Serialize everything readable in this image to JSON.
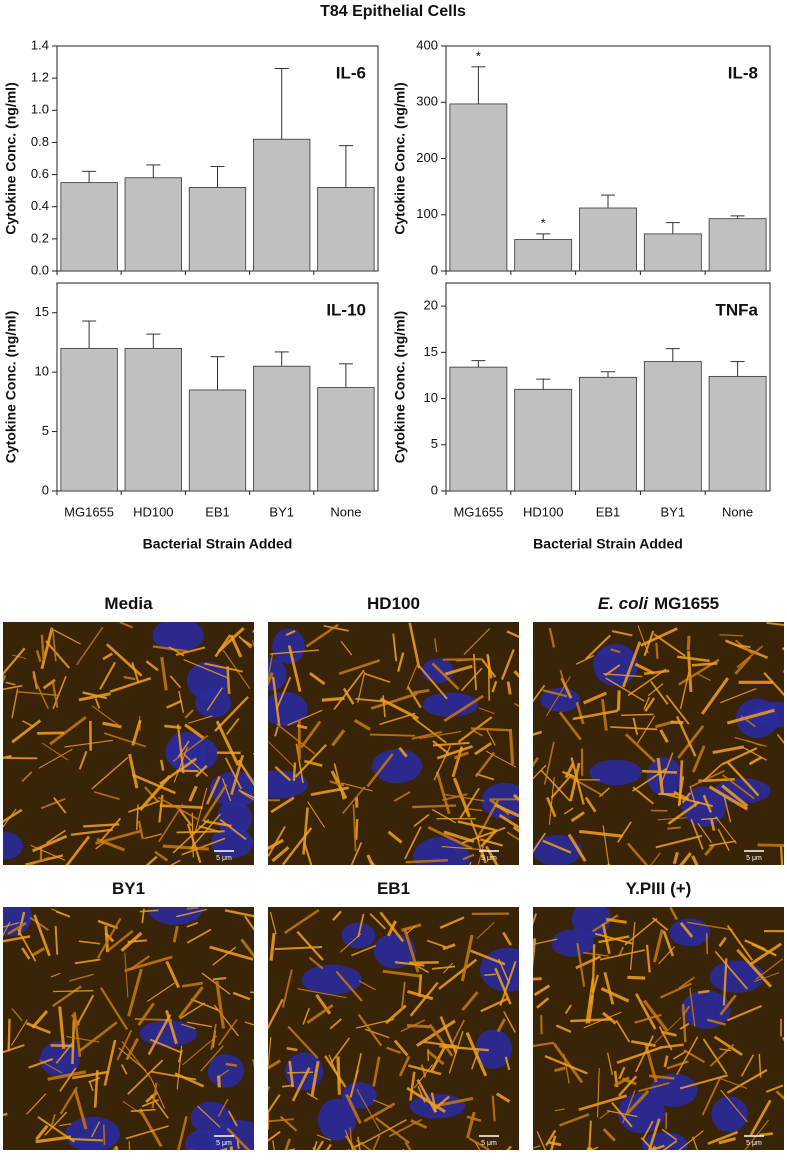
{
  "title": "T84 Epithelial Cells",
  "chart_data": [
    {
      "type": "bar",
      "title": "IL-6",
      "y_label": "Cytokine Conc. (ng/ml)",
      "categories": [
        null,
        null,
        null,
        null,
        null
      ],
      "values": [
        0.55,
        0.58,
        0.52,
        0.82,
        0.52
      ],
      "errors": [
        0.07,
        0.08,
        0.13,
        0.44,
        0.26
      ],
      "color": "#c0c0c0",
      "ylim": [
        0,
        1.4
      ],
      "yticks": [
        {
          "value": 0,
          "label": "0.0"
        },
        0.2,
        0.4,
        0.6,
        0.8,
        {
          "value": 1,
          "label": "1.0"
        },
        1.2,
        1.4
      ]
    },
    {
      "type": "bar",
      "title": "IL-8",
      "y_label": "Cytokine Conc. (ng/ml)",
      "categories": [
        null,
        null,
        null,
        null,
        null
      ],
      "values": [
        297,
        56,
        112,
        66,
        93
      ],
      "errors": [
        66,
        10,
        23,
        20,
        5
      ],
      "annotations": [
        "*",
        "*",
        null,
        null,
        null
      ],
      "color": "#c0c0c0",
      "ylim": [
        0,
        400
      ],
      "yticks": [
        0,
        100,
        200,
        300,
        400
      ]
    },
    {
      "type": "bar",
      "title": "IL-10",
      "y_label": "Cytokine Conc. (ng/ml)",
      "x_label": "Bacterial Strain Added",
      "categories": [
        "MG1655",
        "HD100",
        "EB1",
        "BY1",
        "None"
      ],
      "values": [
        12.0,
        12.0,
        8.5,
        10.5,
        8.7
      ],
      "errors": [
        2.3,
        1.2,
        2.8,
        1.2,
        2.0
      ],
      "color": "#c0c0c0",
      "ylim": [
        0,
        17.5
      ],
      "yticks": [
        0,
        5,
        10,
        15
      ]
    },
    {
      "type": "bar",
      "title": "TNFa",
      "y_label": "Cytokine Conc. (ng/ml)",
      "x_label": "Bacterial Strain Added",
      "categories": [
        "MG1655",
        "HD100",
        "EB1",
        "BY1",
        "None"
      ],
      "values": [
        13.4,
        11.0,
        12.3,
        14.0,
        12.4
      ],
      "errors": [
        0.7,
        1.1,
        0.6,
        1.4,
        1.6
      ],
      "color": "#c0c0c0",
      "ylim": [
        0,
        22.5
      ],
      "yticks": [
        0,
        5,
        10,
        15,
        20
      ]
    }
  ],
  "images": [
    {
      "label": "Media"
    },
    {
      "label": "HD100"
    },
    {
      "italic": "E. coli",
      "label": "MG1655"
    },
    {
      "label": "BY1"
    },
    {
      "label": "EB1"
    },
    {
      "label": "Y.PIII (+)"
    }
  ],
  "scale_bar": "5 μm"
}
